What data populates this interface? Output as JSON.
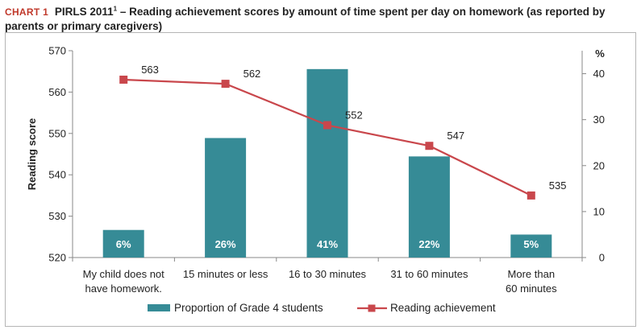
{
  "header": {
    "chart_label": "CHART 1",
    "title_main": "PIRLS 2011",
    "title_sup": "1",
    "title_rest": " – Reading achievement scores by amount of time spent per day on homework (as reported by parents or primary caregivers)"
  },
  "chart_data": {
    "type": "bar",
    "title": "PIRLS 2011¹ – Reading achievement scores by amount of time spent per day on homework (as reported by parents or primary caregivers)",
    "categories": [
      [
        "My child does not",
        "have homework."
      ],
      [
        "15 minutes or less"
      ],
      [
        "16 to 30 minutes"
      ],
      [
        "31 to 60 minutes"
      ],
      [
        "More than",
        "60 minutes"
      ]
    ],
    "series": [
      {
        "name": "Proportion of Grade 4 students",
        "type": "bar",
        "axis": "right",
        "values": [
          6,
          26,
          41,
          22,
          5
        ],
        "labels": [
          "6%",
          "26%",
          "41%",
          "22%",
          "5%"
        ],
        "color": "#368b96"
      },
      {
        "name": "Reading achievement",
        "type": "line",
        "axis": "left",
        "values": [
          563,
          562,
          552,
          547,
          535
        ],
        "labels": [
          "563",
          "562",
          "552",
          "547",
          "535"
        ],
        "color": "#c9474c"
      }
    ],
    "y_left": {
      "label": "Reading score",
      "ylim": [
        520,
        570
      ],
      "ticks": [
        520,
        530,
        540,
        550,
        560,
        570
      ]
    },
    "y_right": {
      "label": "%",
      "ylim": [
        0,
        45
      ],
      "ticks": [
        0,
        10,
        20,
        30,
        40
      ]
    },
    "legend_position": "bottom",
    "grid": false
  }
}
